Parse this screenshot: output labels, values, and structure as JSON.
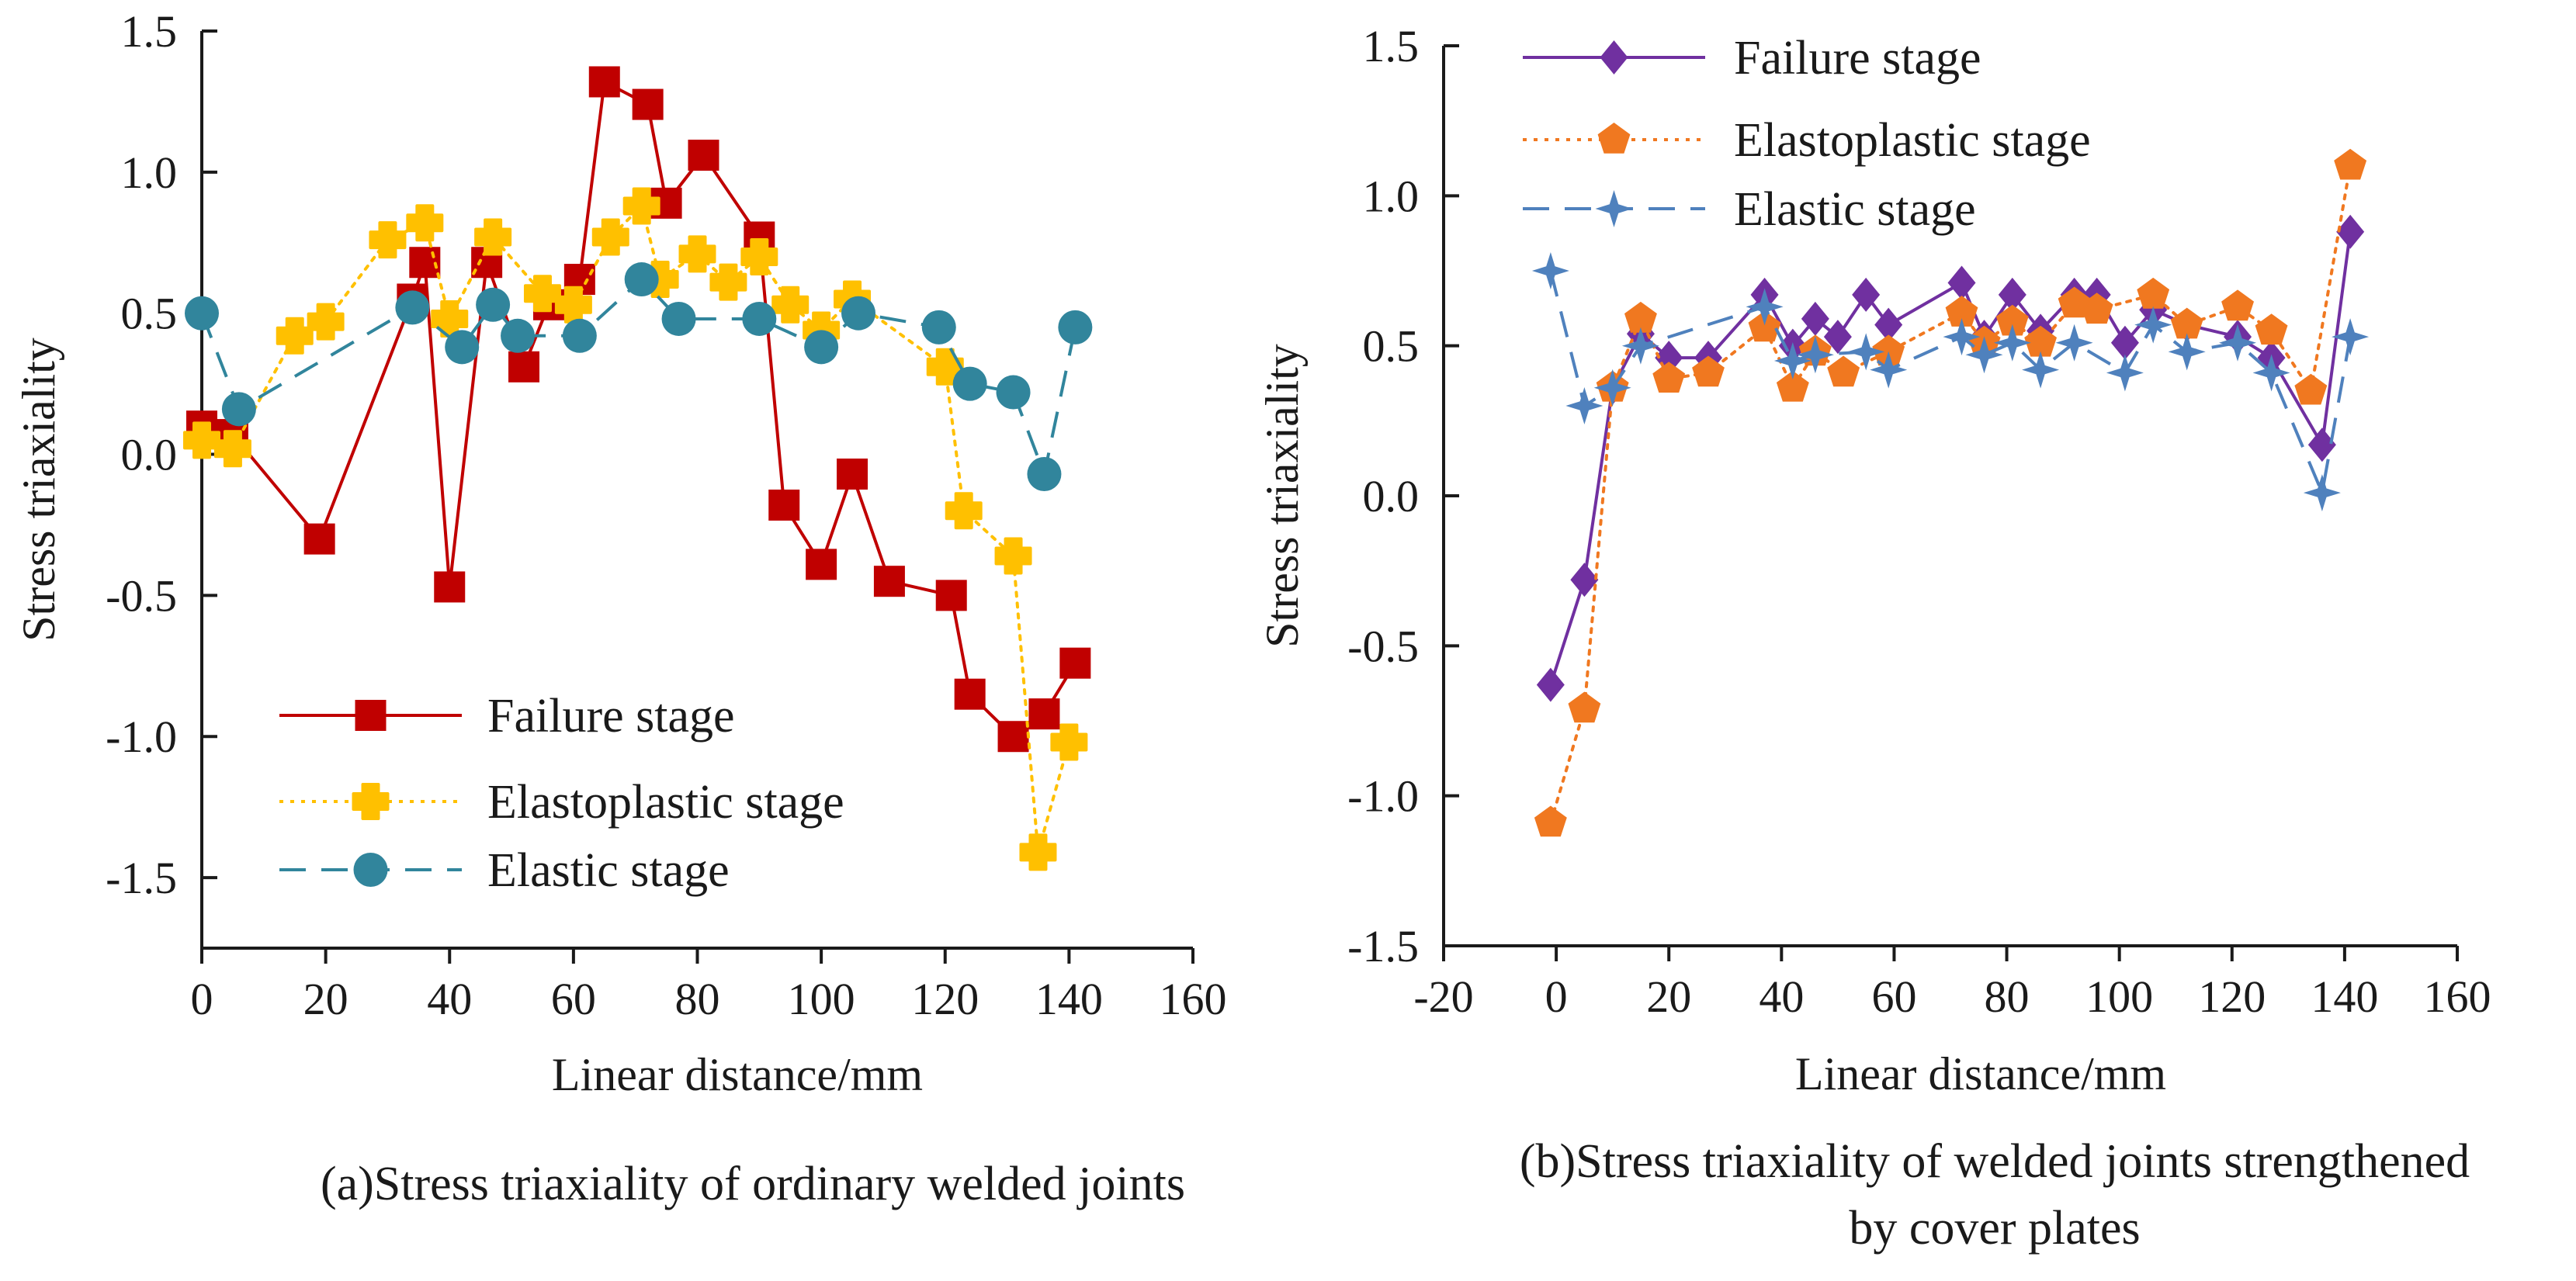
{
  "chart_data": [
    {
      "type": "line",
      "caption": "(a)Stress triaxiality of ordinary welded joints",
      "xlabel": "Linear distance/mm",
      "ylabel": "Stress triaxiality",
      "xlim": [
        0,
        160
      ],
      "ylim": [
        -1.75,
        1.5
      ],
      "xticks": [
        "0",
        "20",
        "40",
        "60",
        "80",
        "100",
        "120",
        "140",
        "160"
      ],
      "yticks": [
        "-1.5",
        "-1.0",
        "-0.5",
        "0.0",
        "0.5",
        "1.0",
        "1.5"
      ],
      "legend_position": "lower-left",
      "series": [
        {
          "name": "Failure stage",
          "color": "#c00000",
          "marker": "square",
          "dash": "solid",
          "x": [
            0,
            5,
            19,
            34,
            36,
            40,
            46,
            52,
            56,
            61,
            65,
            72,
            75,
            81,
            90,
            94,
            100,
            105,
            111,
            121,
            124,
            131,
            136,
            141
          ],
          "y": [
            0.1,
            0.07,
            -0.3,
            0.55,
            0.68,
            -0.47,
            0.68,
            0.31,
            0.53,
            0.62,
            1.32,
            1.24,
            0.89,
            1.06,
            0.77,
            -0.18,
            -0.39,
            -0.07,
            -0.45,
            -0.5,
            -0.85,
            -1.0,
            -0.92,
            -0.74
          ]
        },
        {
          "name": "Elastoplastic stage",
          "color": "#ffc000",
          "marker": "cross",
          "dash": "dotted",
          "x": [
            0,
            5,
            15,
            20,
            30,
            36,
            40,
            47,
            55,
            60,
            66,
            71,
            74,
            80,
            85,
            90,
            95,
            100,
            105,
            120,
            123,
            131,
            135,
            140
          ],
          "y": [
            0.05,
            0.02,
            0.42,
            0.47,
            0.76,
            0.82,
            0.48,
            0.77,
            0.57,
            0.53,
            0.77,
            0.88,
            0.62,
            0.71,
            0.61,
            0.7,
            0.53,
            0.44,
            0.55,
            0.31,
            -0.2,
            -0.36,
            -1.41,
            -1.02
          ]
        },
        {
          "name": "Elastic stage",
          "color": "#31859c",
          "marker": "circle",
          "dash": "dashed",
          "x": [
            0,
            6,
            34,
            42,
            47,
            51,
            61,
            71,
            77,
            90,
            100,
            106,
            119,
            124,
            131,
            136,
            141
          ],
          "y": [
            0.5,
            0.16,
            0.52,
            0.38,
            0.53,
            0.42,
            0.42,
            0.62,
            0.48,
            0.48,
            0.38,
            0.5,
            0.45,
            0.25,
            0.22,
            -0.07,
            0.45
          ]
        }
      ]
    },
    {
      "type": "line",
      "caption_lines": [
        "(b)Stress triaxiality of welded joints strengthened",
        "by cover plates"
      ],
      "xlabel": "Linear distance/mm",
      "ylabel": "Stress triaxiality",
      "xlim": [
        -20,
        160
      ],
      "ylim": [
        -1.5,
        1.5
      ],
      "xticks": [
        "-20",
        "0",
        "20",
        "40",
        "60",
        "80",
        "100",
        "120",
        "140",
        "160"
      ],
      "yticks": [
        "-1.5",
        "-1.0",
        "-0.5",
        "0.0",
        "0.5",
        "1.0",
        "1.5"
      ],
      "legend_position": "top-left",
      "series": [
        {
          "name": "Failure stage",
          "color": "#7030a0",
          "marker": "diamond",
          "dash": "solid",
          "x": [
            -1,
            5,
            10,
            15,
            20,
            27,
            37,
            42,
            46,
            50,
            55,
            59,
            72,
            76,
            81,
            86,
            92,
            96,
            101,
            106,
            112,
            121,
            127,
            136,
            141
          ],
          "y": [
            -0.63,
            -0.28,
            0.36,
            0.54,
            0.46,
            0.46,
            0.67,
            0.5,
            0.59,
            0.53,
            0.67,
            0.57,
            0.71,
            0.53,
            0.67,
            0.55,
            0.67,
            0.67,
            0.51,
            0.62,
            0.57,
            0.53,
            0.46,
            0.17,
            0.88
          ]
        },
        {
          "name": "Elastoplastic stage",
          "color": "#f07820",
          "marker": "pentagon",
          "dash": "dotted",
          "x": [
            -1,
            5,
            10,
            15,
            20,
            27,
            37,
            42,
            46,
            51,
            59,
            72,
            76,
            81,
            86,
            92,
            96,
            106,
            112,
            121,
            127,
            134,
            141
          ],
          "y": [
            -1.09,
            -0.71,
            0.36,
            0.59,
            0.39,
            0.41,
            0.56,
            0.36,
            0.48,
            0.41,
            0.48,
            0.61,
            0.51,
            0.58,
            0.51,
            0.64,
            0.62,
            0.67,
            0.57,
            0.63,
            0.55,
            0.35,
            1.1
          ]
        },
        {
          "name": "Elastic stage",
          "color": "#4f81bd",
          "marker": "star",
          "dash": "dashed",
          "x": [
            -1,
            5,
            10,
            15,
            37,
            42,
            46,
            55,
            59,
            72,
            76,
            81,
            86,
            92,
            101,
            106,
            112,
            121,
            127,
            136,
            141
          ],
          "y": [
            0.75,
            0.3,
            0.36,
            0.5,
            0.63,
            0.45,
            0.47,
            0.48,
            0.42,
            0.53,
            0.47,
            0.51,
            0.42,
            0.51,
            0.41,
            0.57,
            0.48,
            0.51,
            0.41,
            0.01,
            0.53
          ]
        }
      ]
    }
  ]
}
